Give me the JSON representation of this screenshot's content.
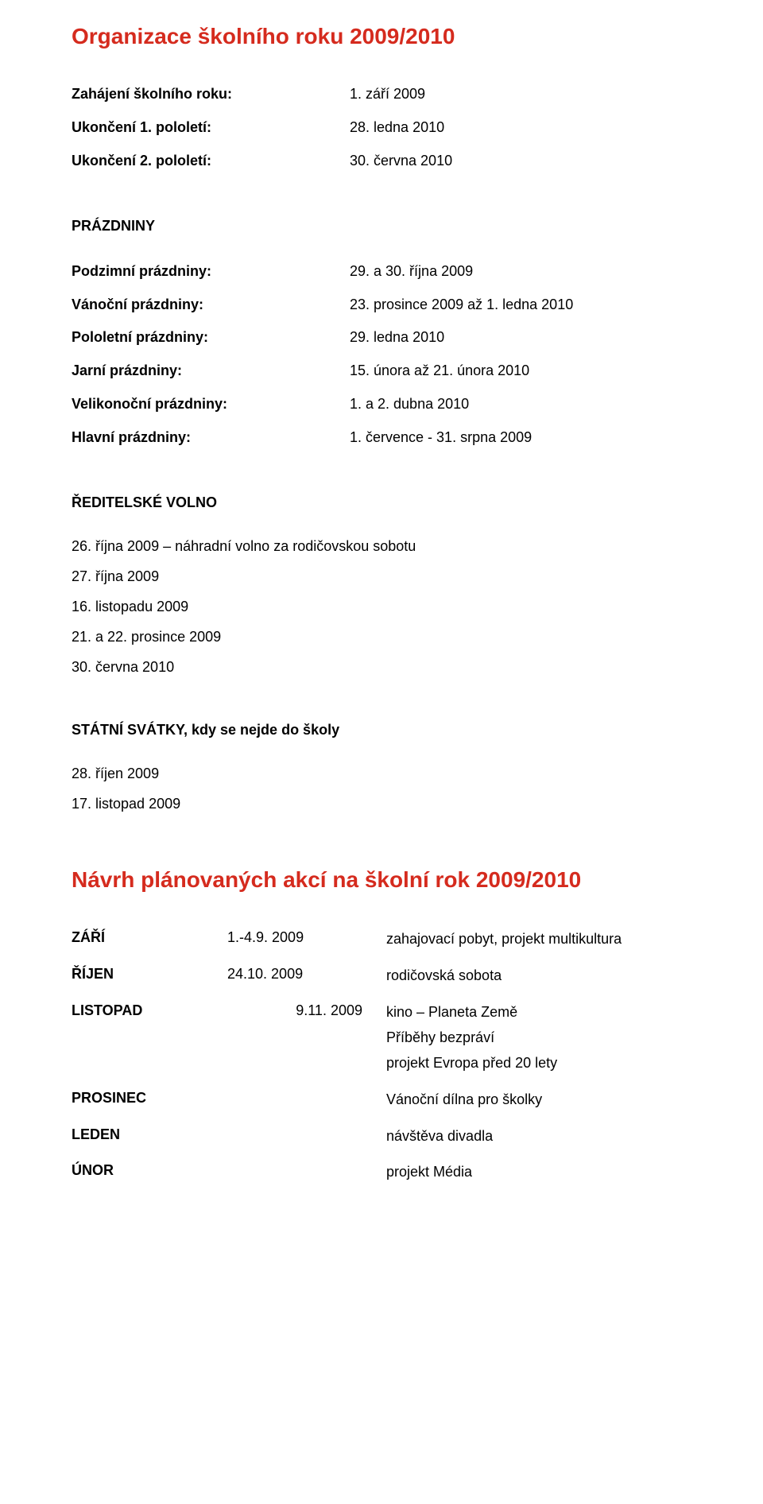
{
  "colors": {
    "heading": "#d52b1e",
    "text": "#000000",
    "background": "#ffffff"
  },
  "fonts": {
    "family": "Verdana",
    "body_size_pt": 13,
    "heading_size_pt": 20
  },
  "title1": "Organizace školního roku 2009/2010",
  "org": [
    {
      "label": "Zahájení školního roku:",
      "value": "1. září 2009"
    },
    {
      "label": "Ukončení 1. pololetí:",
      "value": "28. ledna 2010"
    },
    {
      "label": "Ukončení 2. pololetí:",
      "value": "30. června 2010"
    }
  ],
  "holidays_title": "PRÁZDNINY",
  "holidays": [
    {
      "label": "Podzimní prázdniny:",
      "value": "29. a 30. října 2009"
    },
    {
      "label": "Vánoční prázdniny:",
      "value": "23. prosince 2009 až 1. ledna 2010"
    },
    {
      "label": "Pololetní prázdniny:",
      "value": "29. ledna 2010"
    },
    {
      "label": "Jarní prázdniny:",
      "value": "15. února až 21. února 2010"
    },
    {
      "label": "Velikonoční prázdniny:",
      "value": "1. a 2. dubna 2010"
    },
    {
      "label": "Hlavní prázdniny:",
      "value": "1. července - 31. srpna 2009"
    }
  ],
  "reditelske_title": "ŘEDITELSKÉ VOLNO",
  "reditelske": [
    "26. října 2009 – náhradní volno za rodičovskou sobotu",
    "27. října 2009",
    "16. listopadu 2009",
    "21. a 22. prosince 2009",
    "30. června 2010"
  ],
  "svatky_title": "STÁTNÍ SVÁTKY, kdy se nejde do školy",
  "svatky": [
    "28. říjen 2009",
    "17. listopad 2009"
  ],
  "title2": "Návrh plánovaných akcí na školní rok 2009/2010",
  "plan": [
    {
      "month": "ZÁŘÍ",
      "date": "1.-4.9. 2009",
      "date_align": "left",
      "desc": [
        "zahajovací pobyt, projekt multikultura"
      ]
    },
    {
      "month": "ŘÍJEN",
      "date": "24.10. 2009",
      "date_align": "left",
      "desc": [
        "rodičovská sobota"
      ]
    },
    {
      "month": "LISTOPAD",
      "date": "9.11. 2009",
      "date_align": "right",
      "desc": [
        "kino – Planeta Země",
        "Příběhy bezpráví",
        "projekt Evropa před 20 lety"
      ]
    },
    {
      "month": "PROSINEC",
      "date": "",
      "date_align": "left",
      "desc": [
        "Vánoční dílna pro školky"
      ]
    },
    {
      "month": "LEDEN",
      "date": "",
      "date_align": "left",
      "desc": [
        "návštěva divadla"
      ]
    },
    {
      "month": "ÚNOR",
      "date": "",
      "date_align": "left",
      "desc": [
        "projekt Média"
      ]
    }
  ]
}
